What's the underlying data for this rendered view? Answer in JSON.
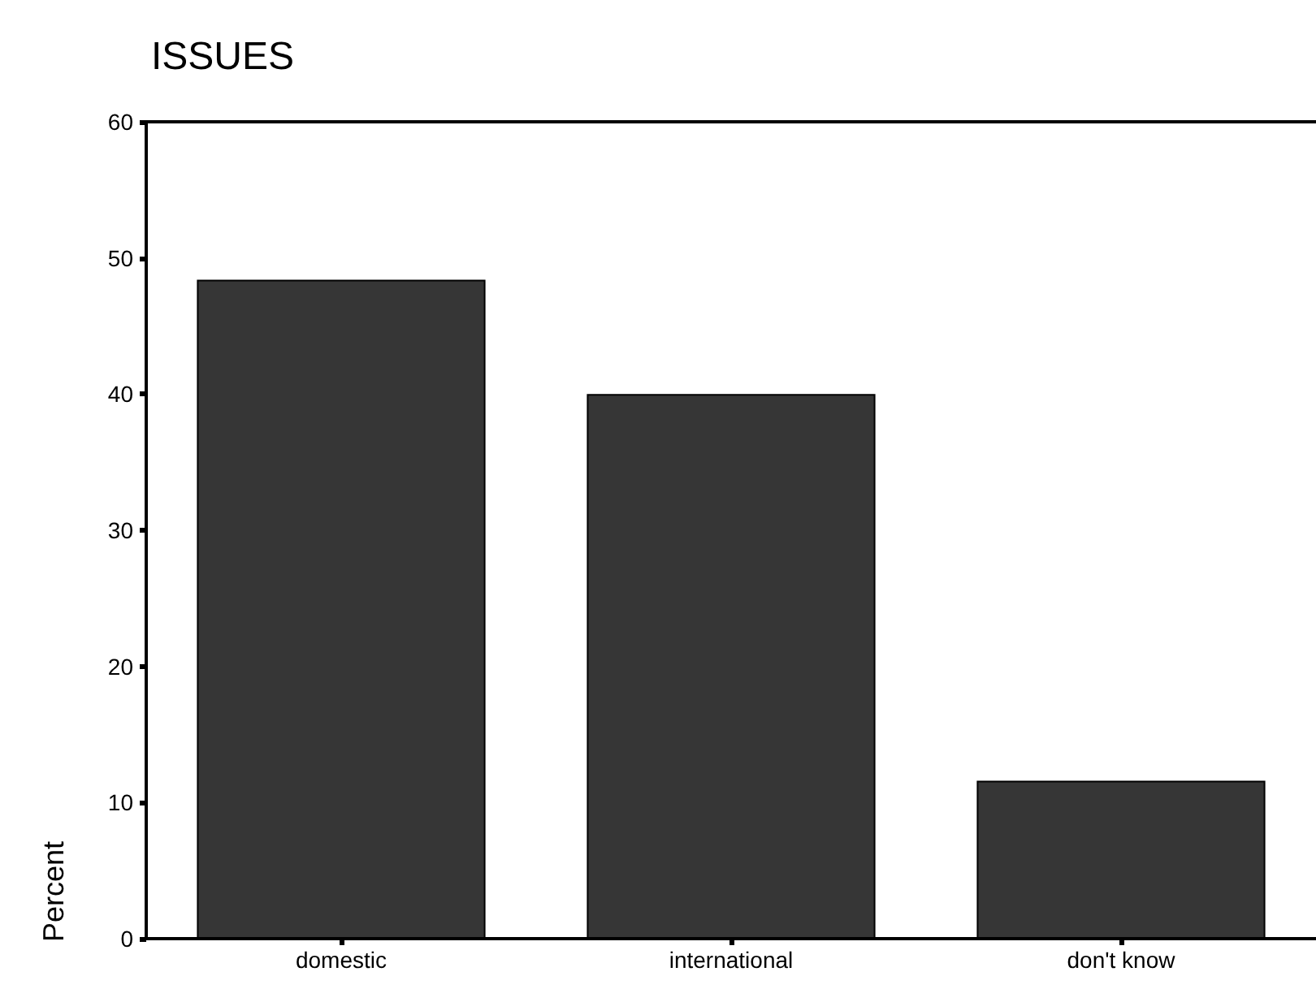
{
  "chart_data": {
    "type": "bar",
    "title": "ISSUES",
    "ylabel": "Percent",
    "categories": [
      "domestic",
      "international",
      "don't know"
    ],
    "values": [
      48.4,
      40.0,
      11.6
    ],
    "color": "#363636",
    "ylim": [
      0,
      60
    ],
    "yticks": [
      0,
      10,
      20,
      30,
      40,
      50,
      60
    ],
    "grid": false
  }
}
